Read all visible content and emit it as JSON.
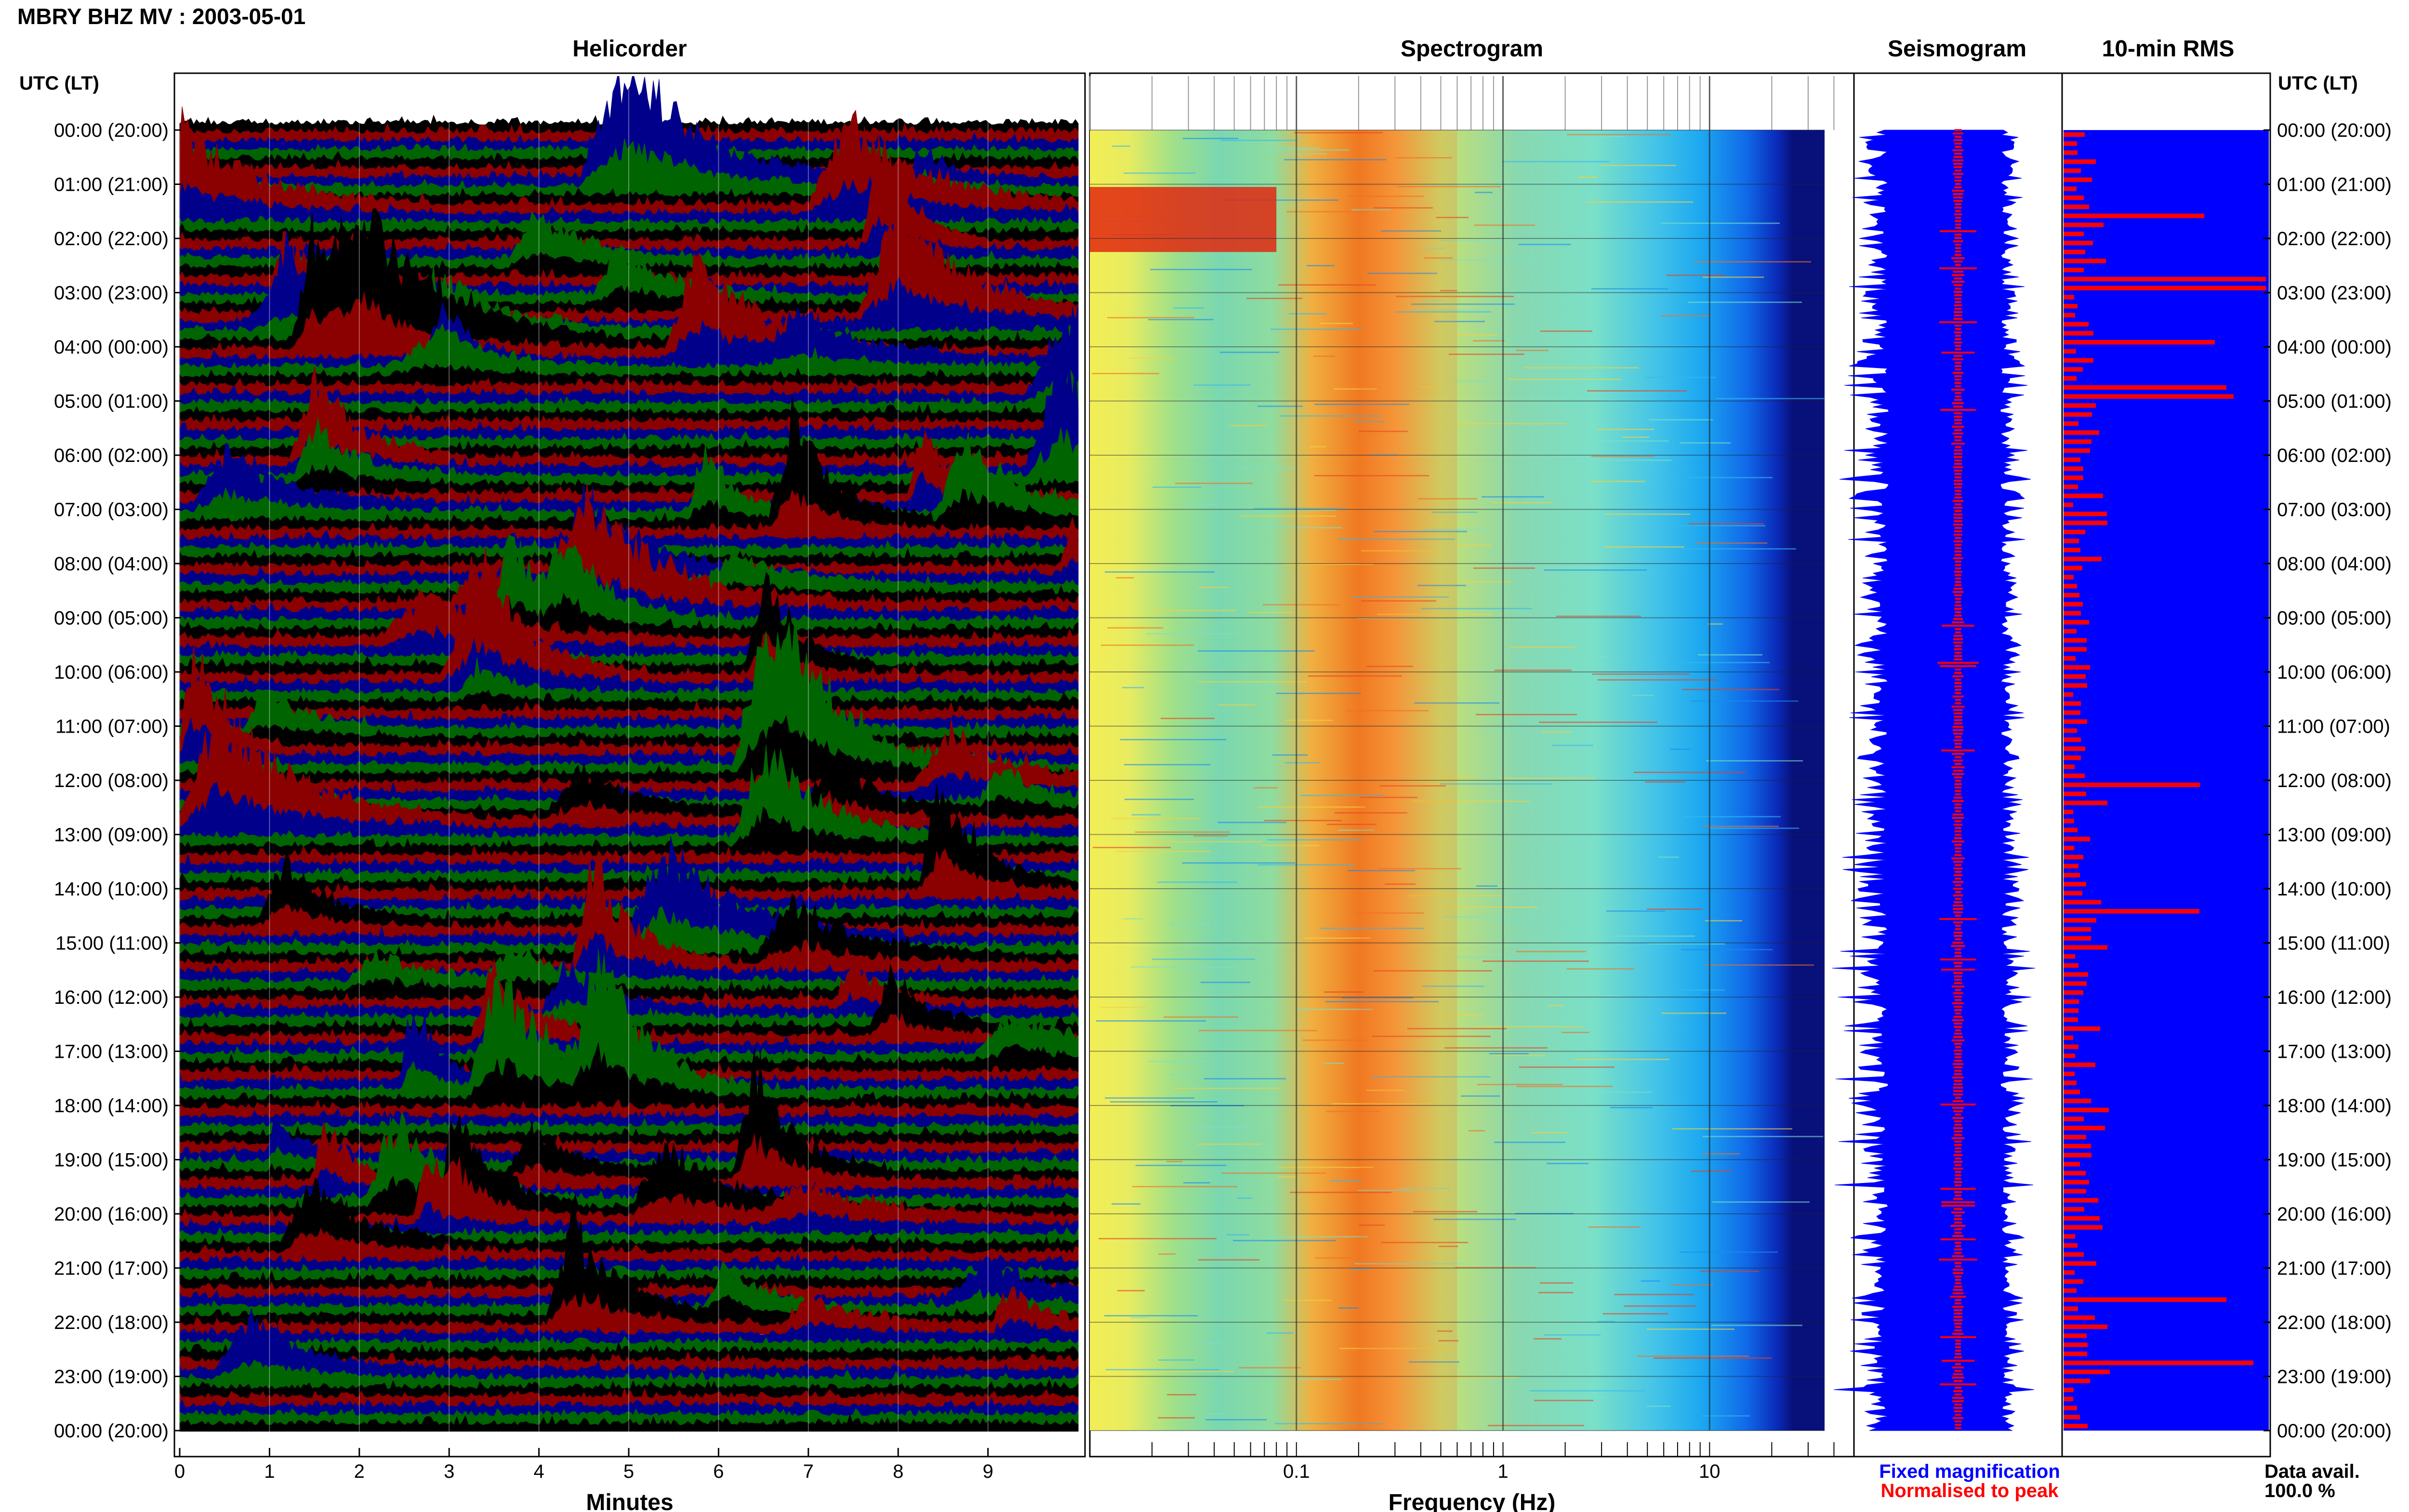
{
  "header": {
    "title": "MBRY BHZ MV : 2003-05-01",
    "left_axis_label": "UTC (LT)",
    "right_axis_label": "UTC (LT)"
  },
  "panels": {
    "helicorder": "Helicorder",
    "spectrogram": "Spectrogram",
    "seismogram": "Seismogram",
    "rms": "10-min RMS"
  },
  "footer": {
    "fixed_magnification": "Fixed magnification",
    "normalised_to_peak": "Normalised to peak",
    "data_avail_label": "Data avail.",
    "data_avail_value": "100.0 %"
  },
  "colors": {
    "trace_cycle": [
      "#000000",
      "#8b0000",
      "#00008b",
      "#006400"
    ],
    "fixed_magnification": "#0000ff",
    "normalised_to_peak": "#ff0000",
    "rms_background": "#0000ff",
    "rms_bars": "#ff0000"
  },
  "chart_data": [
    {
      "type": "line",
      "title": "Helicorder",
      "xlabel": "Minutes",
      "xlim": [
        0,
        10
      ],
      "x_ticks": [
        "0",
        "1",
        "2",
        "3",
        "4",
        "5",
        "6",
        "7",
        "8",
        "9"
      ],
      "y_labels": [
        "00:00 (20:00)",
        "01:00 (21:00)",
        "02:00 (22:00)",
        "03:00 (23:00)",
        "04:00 (00:00)",
        "05:00 (01:00)",
        "06:00 (02:00)",
        "07:00 (03:00)",
        "08:00 (04:00)",
        "09:00 (05:00)",
        "10:00 (06:00)",
        "11:00 (07:00)",
        "12:00 (08:00)",
        "13:00 (09:00)",
        "14:00 (10:00)",
        "15:00 (11:00)",
        "16:00 (12:00)",
        "17:00 (13:00)",
        "18:00 (14:00)",
        "19:00 (15:00)",
        "20:00 (16:00)",
        "21:00 (17:00)",
        "22:00 (18:00)",
        "23:00 (19:00)",
        "00:00 (20:00)"
      ],
      "traces_per_hour": 6,
      "trace_minutes": 10,
      "grid": true
    },
    {
      "type": "heatmap",
      "title": "Spectrogram",
      "xlabel": "Frequency (Hz)",
      "x_scale": "log",
      "xlim": [
        0.01,
        50
      ],
      "x_ticks": [
        "0.1",
        "1",
        "10"
      ],
      "dominant_band_hz": [
        0.2,
        0.6
      ],
      "colormap": "jet",
      "grid": true
    },
    {
      "type": "line",
      "title": "Seismogram",
      "series": [
        {
          "name": "Fixed magnification",
          "color": "#0000ff"
        },
        {
          "name": "Normalised to peak",
          "color": "#ff0000"
        }
      ]
    },
    {
      "type": "bar",
      "title": "10-min RMS",
      "orientation": "horizontal",
      "bins": 144,
      "spike_hours": [
        1.5,
        2.75,
        3.9,
        4.75,
        12.0,
        14.4,
        21.5,
        22.7
      ]
    }
  ]
}
